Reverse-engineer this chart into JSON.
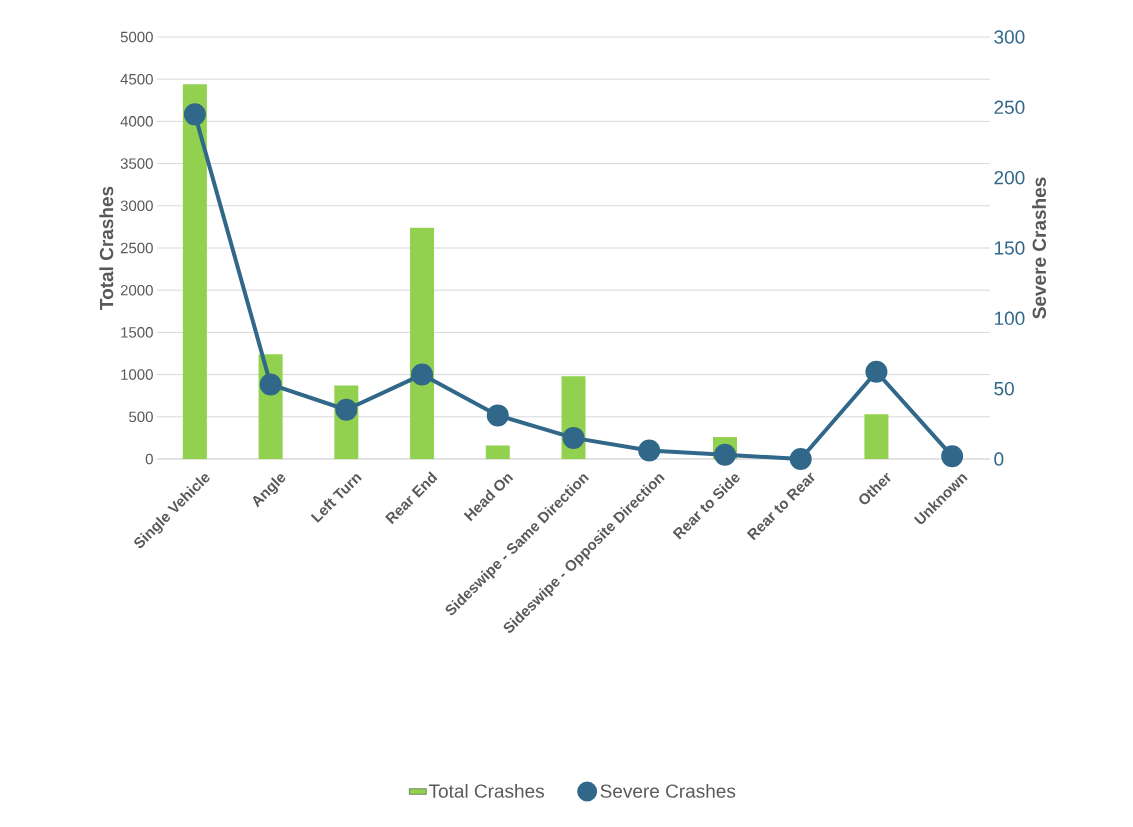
{
  "chart_data": {
    "type": "bar",
    "categories": [
      "Single Vehicle",
      "Angle",
      "Left Turn",
      "Rear End",
      "Head On",
      "Sideswipe - Same Direction",
      "Sideswipe - Opposite Direction",
      "Rear to Side",
      "Rear to Rear",
      "Other",
      "Unknown"
    ],
    "series": [
      {
        "name": "Total Crashes",
        "color": "#92d050",
        "values": [
          4440,
          1240,
          870,
          2740,
          160,
          980,
          null,
          260,
          null,
          530,
          null
        ]
      },
      {
        "name": "Severe Crashes",
        "type": "line",
        "axis": "y2",
        "color": "#31688a",
        "values": [
          245,
          53,
          35,
          60,
          31,
          15,
          6,
          3,
          0,
          62,
          2
        ]
      }
    ],
    "ylabel": "Total Crashes",
    "y2label": "Severe Crashes",
    "ylim": [
      0,
      5000
    ],
    "yticks": [
      0,
      500,
      1000,
      1500,
      2000,
      2500,
      3000,
      3500,
      4000,
      4500,
      5000
    ],
    "y2lim": [
      0,
      300
    ],
    "y2ticks": [
      0,
      50,
      100,
      150,
      200,
      250,
      300
    ],
    "grid": "y",
    "legend": "bottom",
    "marker": "circle",
    "line_style": "solid"
  }
}
